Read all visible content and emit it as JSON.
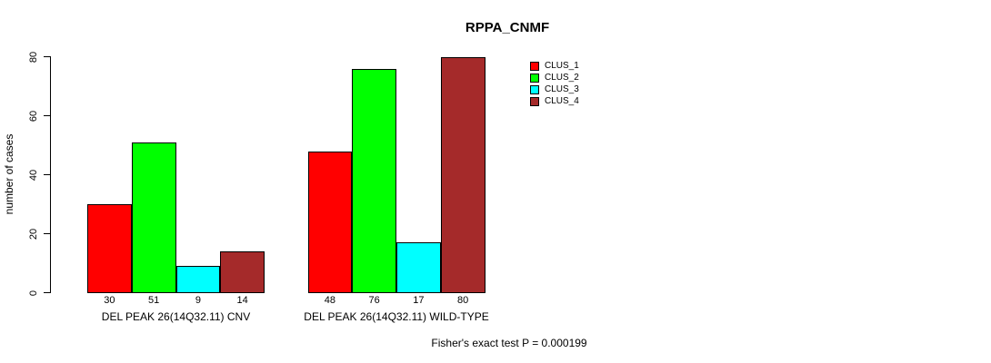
{
  "chart_data": {
    "type": "bar",
    "title": "RPPA_CNMF",
    "ylabel": "number of cases",
    "ylim": [
      0,
      80
    ],
    "yticks": [
      0,
      20,
      40,
      60,
      80
    ],
    "grid": false,
    "categories": [
      "DEL PEAK 26(14Q32.11) CNV",
      "DEL PEAK 26(14Q32.11) WILD-TYPE"
    ],
    "series": [
      {
        "name": "CLUS_1",
        "color": "#FF0000",
        "values": [
          30,
          48
        ]
      },
      {
        "name": "CLUS_2",
        "color": "#00FF00",
        "values": [
          51,
          76
        ]
      },
      {
        "name": "CLUS_3",
        "color": "#00FFFF",
        "values": [
          9,
          17
        ]
      },
      {
        "name": "CLUS_4",
        "color": "#A52A2A",
        "values": [
          14,
          80
        ]
      }
    ],
    "value_labels_shown": true,
    "legend_position": "top-right",
    "annotation": "Fisher's exact test P = 0.000199"
  }
}
